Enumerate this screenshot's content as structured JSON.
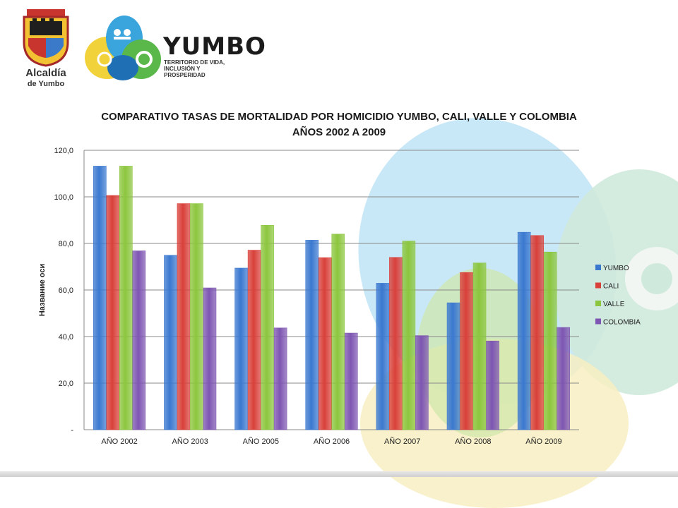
{
  "header": {
    "seal_text": "1536 YUMBO 1864",
    "left_logo_line1": "Alcaldía",
    "left_logo_line2": "de Yumbo",
    "brand_name": "YUMBO",
    "brand_tagline_1": "TERRITORIO DE VIDA,",
    "brand_tagline_2": "INCLUSIÓN Y PROSPERIDAD"
  },
  "colors": {
    "yumbo": "#3a78d0",
    "cali": "#d9403a",
    "valle": "#8cc63e",
    "colombia": "#7e56b2"
  },
  "chart_data": {
    "type": "bar",
    "title_line1": "COMPARATIVO TASAS DE MORTALIDAD POR HOMICIDIO YUMBO, CALI, VALLE Y COLOMBIA",
    "title_line2": "AÑOS 2002 A 2009",
    "ylabel": "Название оси",
    "xlabel": "",
    "ylim": [
      0,
      120
    ],
    "yticks": [
      "-",
      "20,0",
      "40,0",
      "60,0",
      "80,0",
      "100,0",
      "120,0"
    ],
    "categories": [
      "AÑO 2002",
      "AÑO 2003",
      "AÑO 2005",
      "AÑO 2006",
      "AÑO 2007",
      "AÑO 2008",
      "AÑO 2009"
    ],
    "series": [
      {
        "name": "YUMBO",
        "values": [
          113.2,
          74.9,
          69.4,
          81.4,
          62.9,
          54.5,
          84.8
        ]
      },
      {
        "name": "CALI",
        "values": [
          100.6,
          97.1,
          77.1,
          73.9,
          74.0,
          67.5,
          83.4
        ]
      },
      {
        "name": "VALLE",
        "values": [
          113.2,
          97.1,
          87.8,
          84.0,
          81.0,
          71.6,
          76.3
        ]
      },
      {
        "name": "COLOMBIA",
        "values": [
          76.8,
          60.9,
          43.7,
          41.5,
          40.4,
          38.1,
          43.9
        ]
      }
    ],
    "grid": true,
    "legend_position": "right"
  }
}
